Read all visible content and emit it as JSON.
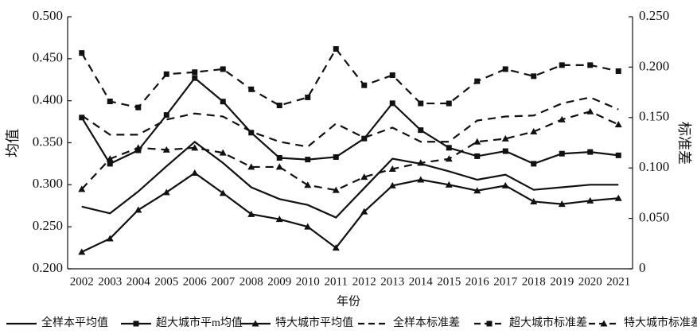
{
  "chart_data": {
    "type": "line",
    "categories": [
      "2002",
      "2003",
      "2004",
      "2005",
      "2006",
      "2007",
      "2008",
      "2009",
      "2010",
      "2011",
      "2012",
      "2013",
      "2014",
      "2015",
      "2016",
      "2017",
      "2018",
      "2019",
      "2020",
      "2021"
    ],
    "x_label": "年份",
    "y_label": "均值",
    "y2_label": "标准差",
    "ylim": [
      0.2,
      0.5
    ],
    "yticks": [
      {
        "value": 0.2,
        "label": "0.200"
      },
      {
        "value": 0.25,
        "label": "0.250"
      },
      {
        "value": 0.3,
        "label": "0.300"
      },
      {
        "value": 0.35,
        "label": "0.350"
      },
      {
        "value": 0.4,
        "label": "0.400"
      },
      {
        "value": 0.45,
        "label": "0.450"
      },
      {
        "value": 0.5,
        "label": "0.500"
      }
    ],
    "y2lim": [
      0,
      0.25
    ],
    "y2ticks": [
      0,
      {
        "value": 0.05,
        "label": "0.050"
      },
      {
        "value": 0.1,
        "label": "0.100"
      },
      {
        "value": 0.15,
        "label": "0.150"
      },
      {
        "value": 0.2,
        "label": "0.200"
      },
      {
        "value": 0.25,
        "label": "0.250"
      }
    ],
    "grid": false,
    "legend": "bottom",
    "series": [
      {
        "name": "全样本平均值",
        "color": "#111111",
        "dash": false,
        "marker": "none",
        "values": [
          0.274,
          0.266,
          0.292,
          0.322,
          0.351,
          0.326,
          0.297,
          0.283,
          0.276,
          0.261,
          0.296,
          0.331,
          0.325,
          0.316,
          0.306,
          0.312,
          0.294,
          0.297,
          0.3,
          0.3
        ]
      },
      {
        "name": "超大城市平m均值",
        "color": "#111111",
        "dash": false,
        "marker": "square",
        "values": [
          0.38,
          0.325,
          0.341,
          0.383,
          0.427,
          0.399,
          0.362,
          0.332,
          0.33,
          0.333,
          0.355,
          0.397,
          0.365,
          0.344,
          0.334,
          0.34,
          0.325,
          0.337,
          0.339,
          0.335
        ]
      },
      {
        "name": "特大城市平均值",
        "color": "#111111",
        "dash": false,
        "marker": "triangle",
        "values": [
          0.22,
          0.236,
          0.27,
          0.291,
          0.314,
          0.29,
          0.265,
          0.259,
          0.25,
          0.225,
          0.268,
          0.299,
          0.306,
          0.3,
          0.293,
          0.299,
          0.28,
          0.277,
          0.281,
          0.284
        ]
      },
      {
        "name": "全样本标准差",
        "color": "#111111",
        "dash": true,
        "marker": "none",
        "axis": "y2",
        "values": [
          0.152,
          0.133,
          0.133,
          0.148,
          0.154,
          0.151,
          0.136,
          0.126,
          0.121,
          0.144,
          0.13,
          0.14,
          0.126,
          0.126,
          0.147,
          0.151,
          0.152,
          0.164,
          0.17,
          0.158
        ]
      },
      {
        "name": "超大城市标准差",
        "color": "#111111",
        "dash": true,
        "marker": "square",
        "axis": "y2",
        "values": [
          0.214,
          0.166,
          0.16,
          0.193,
          0.195,
          0.198,
          0.178,
          0.162,
          0.17,
          0.218,
          0.182,
          0.192,
          0.164,
          0.164,
          0.186,
          0.198,
          0.191,
          0.202,
          0.202,
          0.196
        ]
      },
      {
        "name": "特大城市标准差",
        "color": "#111111",
        "dash": true,
        "marker": "triangle",
        "axis": "y2",
        "values": [
          0.079,
          0.109,
          0.12,
          0.118,
          0.12,
          0.115,
          0.101,
          0.101,
          0.083,
          0.078,
          0.091,
          0.099,
          0.105,
          0.109,
          0.126,
          0.129,
          0.136,
          0.148,
          0.156,
          0.143
        ]
      }
    ]
  }
}
